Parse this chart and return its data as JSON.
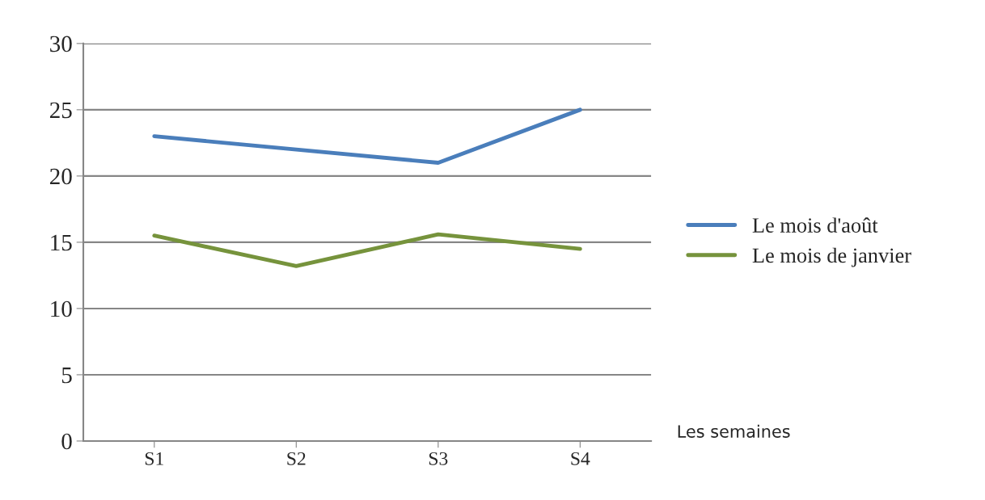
{
  "chart_data": {
    "type": "line",
    "xlabel": "Les semaines",
    "categories": [
      "S1",
      "S2",
      "S3",
      "S4"
    ],
    "series": [
      {
        "name": "Le mois d'août",
        "color": "#4a7ebb",
        "values": [
          23,
          22,
          21,
          25
        ]
      },
      {
        "name": "Le mois de janvier",
        "color": "#76933c",
        "values": [
          15.5,
          13.2,
          15.6,
          14.5
        ]
      }
    ],
    "ylim": [
      0,
      30
    ],
    "yticks": [
      0,
      5,
      10,
      15,
      20,
      25,
      30
    ],
    "grid": "y",
    "legend": "right",
    "marker": "none",
    "line_style": "solid"
  }
}
